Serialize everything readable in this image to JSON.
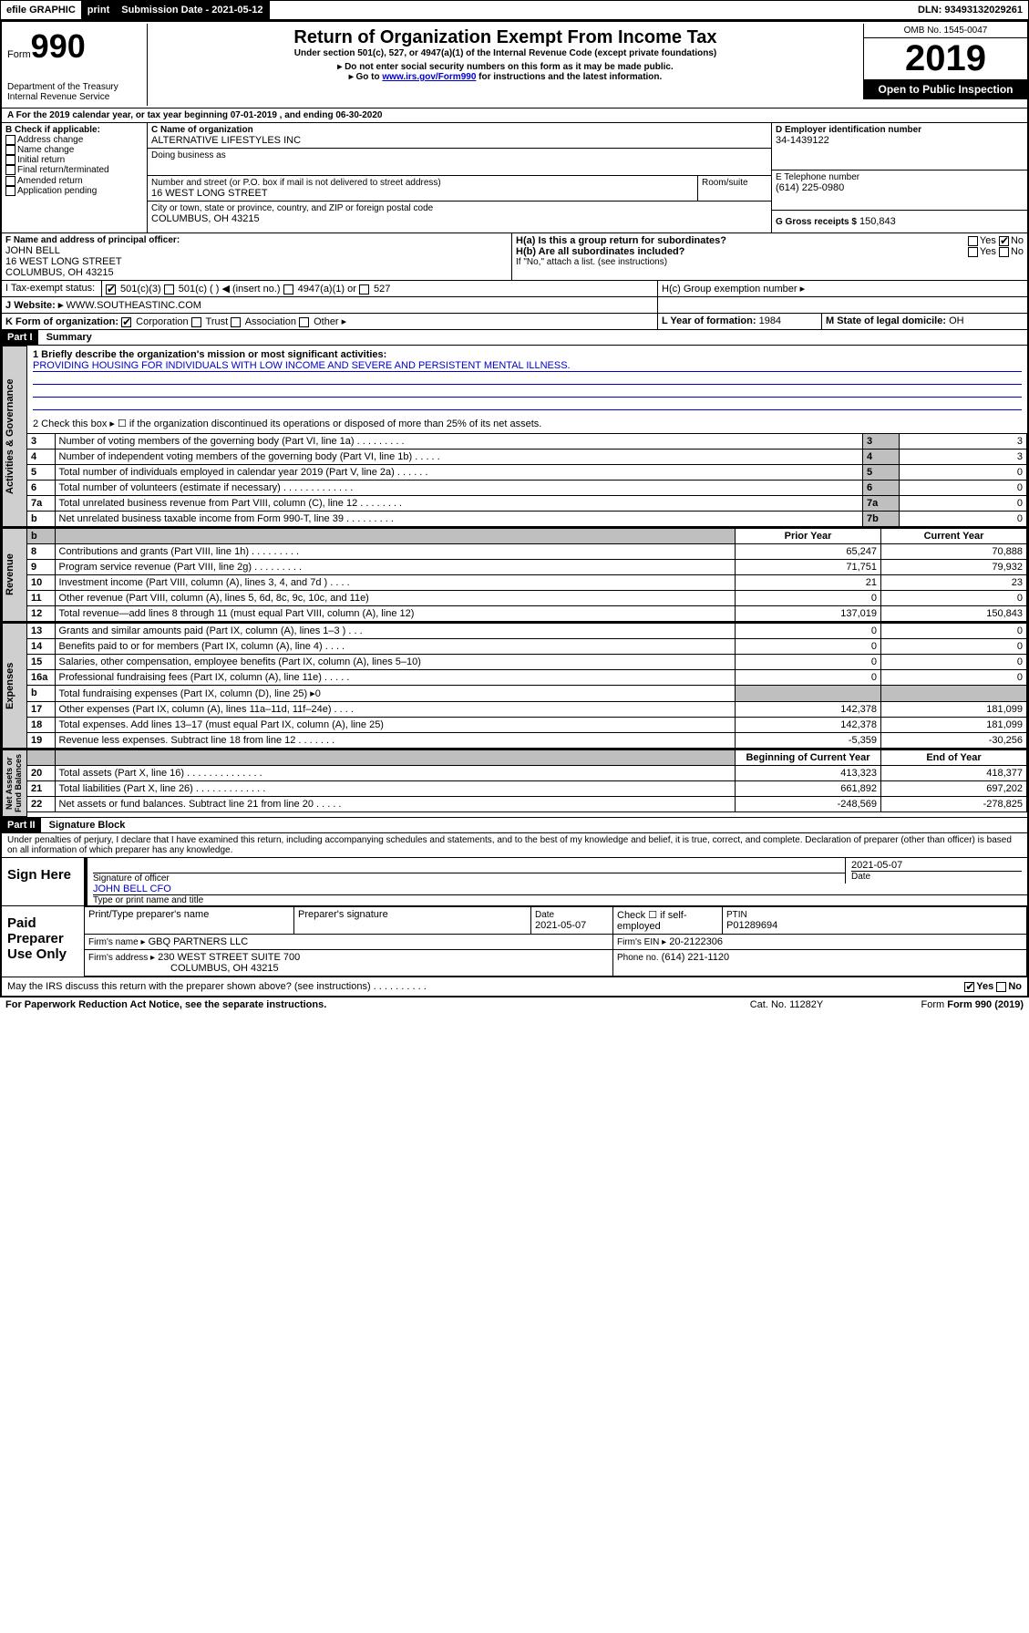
{
  "topbar": {
    "efile": "efile GRAPHIC",
    "print": "print",
    "sub_label": "Submission Date - 2021-05-12",
    "dln": "DLN: 93493132029261"
  },
  "header": {
    "form_word": "Form",
    "form_num": "990",
    "dept": "Department of the Treasury\nInternal Revenue Service",
    "title": "Return of Organization Exempt From Income Tax",
    "subtitle": "Under section 501(c), 527, or 4947(a)(1) of the Internal Revenue Code (except private foundations)",
    "note1": "▸ Do not enter social security numbers on this form as it may be made public.",
    "note2_pre": "▸ Go to ",
    "note2_link": "www.irs.gov/Form990",
    "note2_post": " for instructions and the latest information.",
    "omb": "OMB No. 1545-0047",
    "year": "2019",
    "open": "Open to Public Inspection"
  },
  "periodA": "For the 2019 calendar year, or tax year beginning 07-01-2019    , and ending 06-30-2020",
  "boxB": {
    "label": "Check if applicable:",
    "items": [
      "Address change",
      "Name change",
      "Initial return",
      "Final return/terminated",
      "Amended return",
      "Application pending"
    ]
  },
  "boxC": {
    "c_label": "C Name of organization",
    "c_name": "ALTERNATIVE LIFESTYLES INC",
    "dba_label": "Doing business as",
    "addr_label": "Number and street (or P.O. box if mail is not delivered to street address)",
    "room_label": "Room/suite",
    "addr": "16 WEST LONG STREET",
    "city_label": "City or town, state or province, country, and ZIP or foreign postal code",
    "city": "COLUMBUS, OH  43215"
  },
  "boxD": {
    "label": "D Employer identification number",
    "val": "34-1439122"
  },
  "boxE": {
    "label": "E Telephone number",
    "val": "(614) 225-0980"
  },
  "boxG": {
    "label": "G Gross receipts $",
    "val": "150,843"
  },
  "boxF": {
    "label": "F  Name and address of principal officer:",
    "name": "JOHN BELL",
    "addr1": "16 WEST LONG STREET",
    "addr2": "COLUMBUS, OH  43215"
  },
  "boxH": {
    "ha": "H(a)  Is this a group return for subordinates?",
    "hb": "H(b)  Are all subordinates included?",
    "hb_note": "If \"No,\" attach a list. (see instructions)",
    "hc": "H(c)  Group exemption number ▸",
    "yes": "Yes",
    "no": "No"
  },
  "taxI": {
    "label": "Tax-exempt status:",
    "opts": [
      "501(c)(3)",
      "501(c) (  ) ◀ (insert no.)",
      "4947(a)(1) or",
      "527"
    ]
  },
  "taxJ": {
    "label": "Website: ▸",
    "val": "WWW.SOUTHEASTINC.COM"
  },
  "lineK": {
    "label": "K Form of organization:",
    "opts": [
      "Corporation",
      "Trust",
      "Association",
      "Other ▸"
    ]
  },
  "lineL": {
    "label": "L Year of formation:",
    "val": "1984"
  },
  "lineM": {
    "label": "M State of legal domicile:",
    "val": "OH"
  },
  "part1": {
    "hdr": "Part I",
    "title": "Summary",
    "q1_label": "1  Briefly describe the organization's mission or most significant activities:",
    "q1_text": "PROVIDING HOUSING FOR INDIVIDUALS WITH LOW INCOME AND SEVERE AND PERSISTENT MENTAL ILLNESS.",
    "q2": "2  Check this box ▸ ☐  if the organization discontinued its operations or disposed of more than 25% of its net assets.",
    "rows_gov": [
      {
        "n": "3",
        "t": "Number of voting members of the governing body (Part VI, line 1a)   .   .   .   .   .   .   .   .   .",
        "c": "3",
        "v": "3"
      },
      {
        "n": "4",
        "t": "Number of independent voting members of the governing body (Part VI, line 1b)   .   .   .   .   .",
        "c": "4",
        "v": "3"
      },
      {
        "n": "5",
        "t": "Total number of individuals employed in calendar year 2019 (Part V, line 2a)   .   .   .   .   .   .",
        "c": "5",
        "v": "0"
      },
      {
        "n": "6",
        "t": "Total number of volunteers (estimate if necessary)   .   .   .   .   .   .   .   .   .   .   .   .   .",
        "c": "6",
        "v": "0"
      },
      {
        "n": "7a",
        "t": "Total unrelated business revenue from Part VIII, column (C), line 12   .   .   .   .   .   .   .   .",
        "c": "7a",
        "v": "0"
      },
      {
        "n": "b",
        "t": "Net unrelated business taxable income from Form 990-T, line 39   .   .   .   .   .   .   .   .   .",
        "c": "7b",
        "v": "0"
      }
    ],
    "col_hdr": {
      "b": "b",
      "prior": "Prior Year",
      "curr": "Current Year"
    },
    "rows_rev": [
      {
        "n": "8",
        "t": "Contributions and grants (Part VIII, line 1h)   .   .   .   .   .   .   .   .   .",
        "p": "65,247",
        "c": "70,888"
      },
      {
        "n": "9",
        "t": "Program service revenue (Part VIII, line 2g)   .   .   .   .   .   .   .   .   .",
        "p": "71,751",
        "c": "79,932"
      },
      {
        "n": "10",
        "t": "Investment income (Part VIII, column (A), lines 3, 4, and 7d )   .   .   .   .",
        "p": "21",
        "c": "23"
      },
      {
        "n": "11",
        "t": "Other revenue (Part VIII, column (A), lines 5, 6d, 8c, 9c, 10c, and 11e)",
        "p": "0",
        "c": "0"
      },
      {
        "n": "12",
        "t": "Total revenue—add lines 8 through 11 (must equal Part VIII, column (A), line 12)",
        "p": "137,019",
        "c": "150,843"
      }
    ],
    "rows_exp": [
      {
        "n": "13",
        "t": "Grants and similar amounts paid (Part IX, column (A), lines 1–3 )   .   .   .",
        "p": "0",
        "c": "0"
      },
      {
        "n": "14",
        "t": "Benefits paid to or for members (Part IX, column (A), line 4)   .   .   .   .",
        "p": "0",
        "c": "0"
      },
      {
        "n": "15",
        "t": "Salaries, other compensation, employee benefits (Part IX, column (A), lines 5–10)",
        "p": "0",
        "c": "0"
      },
      {
        "n": "16a",
        "t": "Professional fundraising fees (Part IX, column (A), line 11e)   .   .   .   .   .",
        "p": "0",
        "c": "0"
      },
      {
        "n": "b",
        "t": "Total fundraising expenses (Part IX, column (D), line 25) ▸0",
        "p": "",
        "c": "",
        "shade": true
      },
      {
        "n": "17",
        "t": "Other expenses (Part IX, column (A), lines 11a–11d, 11f–24e)   .   .   .   .",
        "p": "142,378",
        "c": "181,099"
      },
      {
        "n": "18",
        "t": "Total expenses. Add lines 13–17 (must equal Part IX, column (A), line 25)",
        "p": "142,378",
        "c": "181,099"
      },
      {
        "n": "19",
        "t": "Revenue less expenses. Subtract line 18 from line 12   .   .   .   .   .   .   .",
        "p": "-5,359",
        "c": "-30,256"
      }
    ],
    "col_hdr2": {
      "prior": "Beginning of Current Year",
      "curr": "End of Year"
    },
    "rows_na": [
      {
        "n": "20",
        "t": "Total assets (Part X, line 16)   .   .   .   .   .   .   .   .   .   .   .   .   .   .",
        "p": "413,323",
        "c": "418,377"
      },
      {
        "n": "21",
        "t": "Total liabilities (Part X, line 26)   .   .   .   .   .   .   .   .   .   .   .   .   .",
        "p": "661,892",
        "c": "697,202"
      },
      {
        "n": "22",
        "t": "Net assets or fund balances. Subtract line 21 from line 20   .   .   .   .   .",
        "p": "-248,569",
        "c": "-278,825"
      }
    ],
    "vtabs": {
      "gov": "Activities & Governance",
      "rev": "Revenue",
      "exp": "Expenses",
      "na": "Net Assets or\nFund Balances"
    }
  },
  "part2": {
    "hdr": "Part II",
    "title": "Signature Block",
    "decl": "Under penalties of perjury, I declare that I have examined this return, including accompanying schedules and statements, and to the best of my knowledge and belief, it is true, correct, and complete. Declaration of preparer (other than officer) is based on all information of which preparer has any knowledge.",
    "sign_here": "Sign Here",
    "sig_officer": "Signature of officer",
    "sig_date": "2021-05-07",
    "date_lbl": "Date",
    "officer_name": "JOHN BELL CFO",
    "type_name": "Type or print name and title",
    "paid": "Paid Preparer Use Only",
    "p_name_lbl": "Print/Type preparer's name",
    "p_sig_lbl": "Preparer's signature",
    "p_date_lbl": "Date",
    "p_date": "2021-05-07",
    "p_check": "Check ☐ if self-employed",
    "ptin_lbl": "PTIN",
    "ptin": "P01289694",
    "firm_name_lbl": "Firm's name   ▸",
    "firm_name": "GBQ PARTNERS LLC",
    "firm_ein_lbl": "Firm's EIN ▸",
    "firm_ein": "20-2122306",
    "firm_addr_lbl": "Firm's address ▸",
    "firm_addr1": "230 WEST STREET SUITE 700",
    "firm_addr2": "COLUMBUS, OH  43215",
    "phone_lbl": "Phone no.",
    "phone": "(614) 221-1120",
    "discuss": "May the IRS discuss this return with the preparer shown above? (see instructions)   .   .   .   .   .   .   .   .   .   .",
    "yes": "Yes",
    "no": "No"
  },
  "footer": {
    "pra": "For Paperwork Reduction Act Notice, see the separate instructions.",
    "cat": "Cat. No. 11282Y",
    "form": "Form 990 (2019)"
  }
}
